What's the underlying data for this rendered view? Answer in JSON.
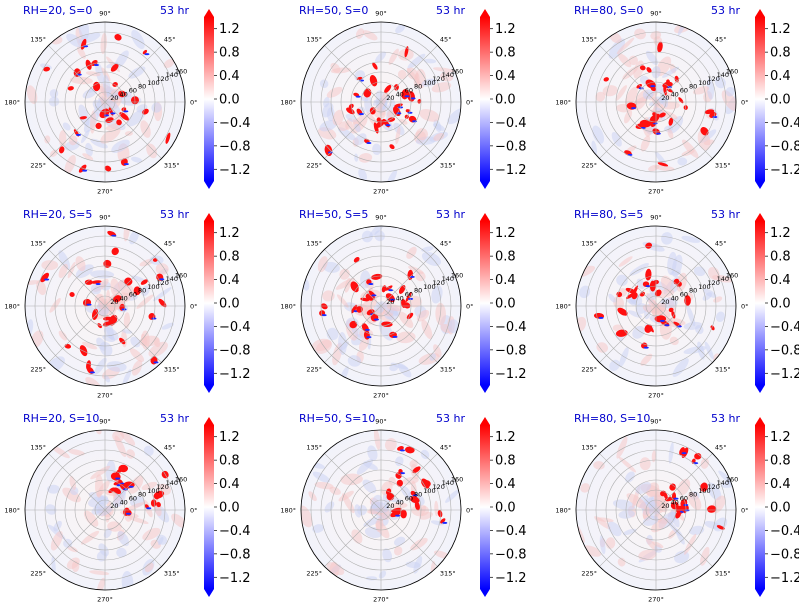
{
  "figure": {
    "angle_labels": [
      "0°",
      "45°",
      "90°",
      "135°",
      "180°",
      "225°",
      "270°",
      "315°"
    ],
    "radial_labels": [
      "20",
      "40",
      "60",
      "80",
      "100",
      "120",
      "140",
      "160"
    ],
    "colorbar": {
      "ticks": [
        "1.2",
        "0.8",
        "0.4",
        "0.0",
        "−0.4",
        "−0.8",
        "−1.2"
      ],
      "tick_values": [
        1.2,
        0.8,
        0.4,
        0.0,
        -0.4,
        -0.8,
        -1.2
      ],
      "range": [
        -1.4,
        1.4
      ],
      "colormap": "bwr",
      "colors": {
        "low": "#0000ff",
        "mid": "#ffffff",
        "high": "#ff0000"
      }
    }
  },
  "chart_data": [
    {
      "type": "heatmap",
      "projection": "polar",
      "title": "RH=20, S=0",
      "time_label": "53 hr",
      "rlim": [
        0,
        160
      ],
      "theta_ticks_deg": [
        0,
        45,
        90,
        135,
        180,
        225,
        270,
        315
      ],
      "r_ticks": [
        20,
        40,
        60,
        80,
        100,
        120,
        140,
        160
      ],
      "vlim": [
        -1.4,
        1.4
      ]
    },
    {
      "type": "heatmap",
      "projection": "polar",
      "title": "RH=50, S=0",
      "time_label": "53 hr",
      "rlim": [
        0,
        160
      ],
      "theta_ticks_deg": [
        0,
        45,
        90,
        135,
        180,
        225,
        270,
        315
      ],
      "r_ticks": [
        20,
        40,
        60,
        80,
        100,
        120,
        140,
        160
      ],
      "vlim": [
        -1.4,
        1.4
      ]
    },
    {
      "type": "heatmap",
      "projection": "polar",
      "title": "RH=80, S=0",
      "time_label": "53 hr",
      "rlim": [
        0,
        160
      ],
      "theta_ticks_deg": [
        0,
        45,
        90,
        135,
        180,
        225,
        270,
        315
      ],
      "r_ticks": [
        20,
        40,
        60,
        80,
        100,
        120,
        140,
        160
      ],
      "vlim": [
        -1.4,
        1.4
      ]
    },
    {
      "type": "heatmap",
      "projection": "polar",
      "title": "RH=20, S=5",
      "time_label": "53 hr",
      "rlim": [
        0,
        160
      ],
      "theta_ticks_deg": [
        0,
        45,
        90,
        135,
        180,
        225,
        270,
        315
      ],
      "r_ticks": [
        20,
        40,
        60,
        80,
        100,
        120,
        140,
        160
      ],
      "vlim": [
        -1.4,
        1.4
      ]
    },
    {
      "type": "heatmap",
      "projection": "polar",
      "title": "RH=50, S=5",
      "time_label": "53 hr",
      "rlim": [
        0,
        160
      ],
      "theta_ticks_deg": [
        0,
        45,
        90,
        135,
        180,
        225,
        270,
        315
      ],
      "r_ticks": [
        20,
        40,
        60,
        80,
        100,
        120,
        140,
        160
      ],
      "vlim": [
        -1.4,
        1.4
      ]
    },
    {
      "type": "heatmap",
      "projection": "polar",
      "title": "RH=80, S=5",
      "time_label": "53 hr",
      "rlim": [
        0,
        160
      ],
      "theta_ticks_deg": [
        0,
        45,
        90,
        135,
        180,
        225,
        270,
        315
      ],
      "r_ticks": [
        20,
        40,
        60,
        80,
        100,
        120,
        140,
        160
      ],
      "vlim": [
        -1.4,
        1.4
      ]
    },
    {
      "type": "heatmap",
      "projection": "polar",
      "title": "RH=20, S=10",
      "time_label": "53 hr",
      "rlim": [
        0,
        160
      ],
      "theta_ticks_deg": [
        0,
        45,
        90,
        135,
        180,
        225,
        270,
        315
      ],
      "r_ticks": [
        20,
        40,
        60,
        80,
        100,
        120,
        140,
        160
      ],
      "vlim": [
        -1.4,
        1.4
      ]
    },
    {
      "type": "heatmap",
      "projection": "polar",
      "title": "RH=50, S=10",
      "time_label": "53 hr",
      "rlim": [
        0,
        160
      ],
      "theta_ticks_deg": [
        0,
        45,
        90,
        135,
        180,
        225,
        270,
        315
      ],
      "r_ticks": [
        20,
        40,
        60,
        80,
        100,
        120,
        140,
        160
      ],
      "vlim": [
        -1.4,
        1.4
      ]
    },
    {
      "type": "heatmap",
      "projection": "polar",
      "title": "RH=80, S=10",
      "time_label": "53 hr",
      "rlim": [
        0,
        160
      ],
      "theta_ticks_deg": [
        0,
        45,
        90,
        135,
        180,
        225,
        270,
        315
      ],
      "r_ticks": [
        20,
        40,
        60,
        80,
        100,
        120,
        140,
        160
      ],
      "vlim": [
        -1.4,
        1.4
      ]
    }
  ]
}
